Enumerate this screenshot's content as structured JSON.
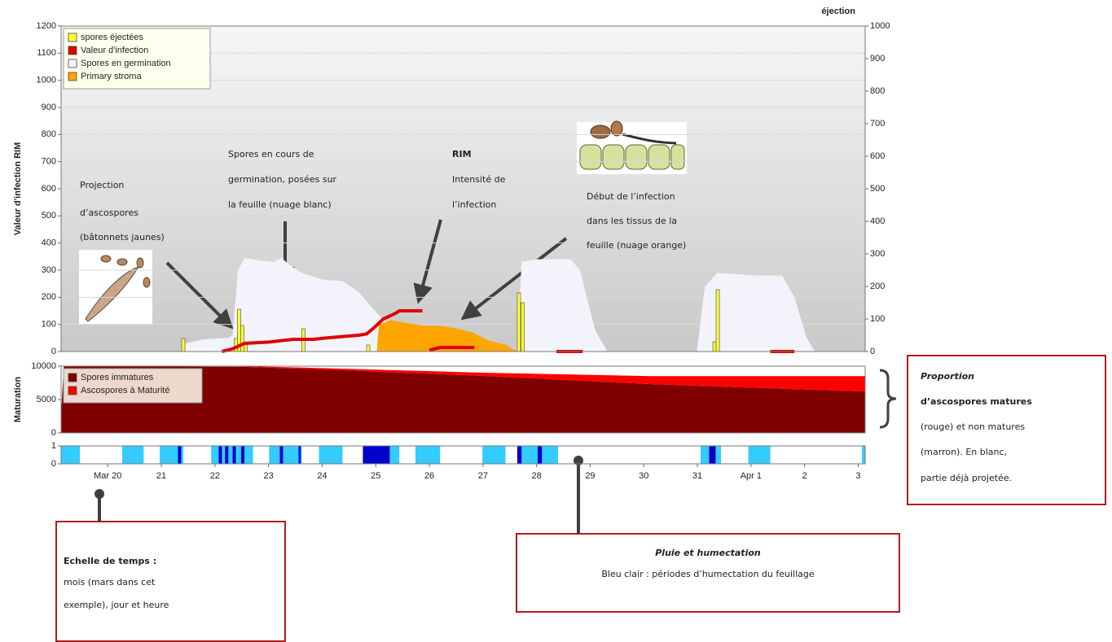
{
  "chart_data": [
    {
      "type": "combo",
      "y_label": "Valeur d'infection RIM",
      "y2_label": "éjection",
      "xlim": [
        19.13,
        34.13
      ],
      "ylim": [
        0,
        1200
      ],
      "yticks": [
        0,
        100,
        200,
        300,
        400,
        500,
        600,
        700,
        800,
        900,
        1000,
        1100,
        1200
      ],
      "y2lim": [
        0,
        1000
      ],
      "y2ticks": [
        0,
        100,
        200,
        300,
        400,
        500,
        600,
        700,
        800,
        900,
        1000
      ],
      "grid": true,
      "legend": "upper left",
      "series": [
        {
          "name": "spores éjectées",
          "type": "bar",
          "axis": "y2",
          "color": "#ffff33",
          "x": [
            21.41,
            22.39,
            22.45,
            22.51,
            22.57,
            23.65,
            24.86,
            27.67,
            27.74,
            31.32,
            31.38
          ],
          "values": [
            40,
            40,
            130,
            80,
            25,
            70,
            20,
            180,
            150,
            30,
            190
          ]
        },
        {
          "name": "Valeur d'infection",
          "type": "line",
          "color": "#e00000",
          "x": [
            22.13,
            22.33,
            22.55,
            23.01,
            23.24,
            23.47,
            23.84,
            24.07,
            24.38,
            24.68,
            24.83,
            24.98,
            25.14,
            25.36,
            25.44,
            25.87,
            25.94,
            26.0,
            26.2,
            26.84,
            27.5,
            28.37,
            28.86,
            30.5,
            32.36,
            32.81
          ],
          "values": [
            0,
            10,
            30,
            35,
            40,
            45,
            45,
            50,
            55,
            60,
            65,
            90,
            120,
            140,
            150,
            150,
            null,
            5,
            15,
            15,
            null,
            0,
            0,
            null,
            0,
            0
          ]
        },
        {
          "name": "Spores en germination",
          "type": "area",
          "color": "#f3f4fb",
          "x": [
            21.37,
            21.46,
            21.79,
            22.25,
            22.33,
            22.43,
            22.55,
            22.86,
            23.09,
            23.24,
            23.39,
            23.62,
            24.0,
            24.38,
            24.68,
            24.98,
            25.29,
            25.59,
            25.74,
            26.5,
            27.64,
            27.72,
            28.02,
            28.63,
            28.81,
            29.09,
            29.32,
            30.0,
            30.99,
            31.14,
            31.37,
            32.13,
            32.58,
            32.81,
            33.04,
            33.19
          ],
          "values": [
            0,
            30,
            45,
            50,
            60,
            300,
            345,
            335,
            330,
            345,
            320,
            290,
            265,
            260,
            220,
            150,
            90,
            60,
            0,
            null,
            0,
            330,
            340,
            340,
            300,
            80,
            0,
            null,
            0,
            240,
            290,
            280,
            280,
            200,
            50,
            0
          ]
        },
        {
          "name": "Primary stroma",
          "type": "area",
          "color": "#ffa500",
          "x": [
            25.02,
            25.06,
            25.29,
            25.59,
            25.9,
            26.2,
            26.5,
            26.81,
            27.11,
            27.42,
            27.64
          ],
          "values": [
            0,
            100,
            115,
            105,
            95,
            95,
            85,
            70,
            40,
            25,
            0
          ]
        }
      ],
      "annotations": [
        {
          "lines": [
            "Projection",
            "d’ascospores",
            "(bâtonnets jaunes)"
          ]
        },
        {
          "lines": [
            "Spores en cours de",
            "germination, posées sur",
            "la feuille (nuage blanc)"
          ]
        },
        {
          "lines": [
            "RIM",
            "Intensité de",
            "l’infection"
          ]
        },
        {
          "lines": [
            "Début de l’infection",
            "dans les tissus de la",
            "feuille (nuage orange)"
          ]
        },
        {
          "lines": [
            "Echelle de temps :",
            "mois (mars dans cet",
            "exemple),  jour et heure"
          ]
        },
        {
          "lines": [
            "Pluie et humectation",
            "Bleu clair : périodes d’humectation du feuillage"
          ]
        },
        {
          "lines": [
            "Proportion",
            "d’ascospores matures",
            "(rouge) et non matures",
            "(marron).  En blanc,",
            "partie déjà projetée."
          ]
        }
      ]
    },
    {
      "type": "area",
      "stacked": true,
      "y_label": "Maturation",
      "xlim": [
        19.13,
        34.13
      ],
      "ylim": [
        0,
        10000
      ],
      "yticks": [
        0,
        5000,
        10000
      ],
      "legend": "upper left",
      "x": [
        19.13,
        19.18,
        22.55,
        24.07,
        27.11,
        30.15,
        34.13
      ],
      "series": [
        {
          "name": "Spores immatures",
          "color": "#800000",
          "values": [
            2800,
            10000,
            9900,
            9500,
            8500,
            7300,
            6200
          ]
        },
        {
          "name": "Ascospores à Maturité",
          "color": "#ff0000",
          "values": [
            0,
            0,
            100,
            200,
            500,
            1200,
            2300
          ]
        }
      ]
    },
    {
      "type": "timeline",
      "xlim": [
        19.13,
        34.13
      ],
      "xticks": [
        {
          "value": 20,
          "label": "Mar 20"
        },
        21,
        22,
        23,
        24,
        25,
        26,
        27,
        28,
        29,
        30,
        31,
        {
          "value": 32,
          "label": "Apr 1"
        },
        {
          "value": 33,
          "label": "2"
        },
        {
          "value": 34,
          "label": "3"
        }
      ],
      "ylim": [
        0,
        1
      ],
      "yticks": [
        0,
        1
      ],
      "series": [
        {
          "color": "#33ccff",
          "intervals": [
            [
              19.13,
              19.48
            ],
            [
              20.27,
              20.67
            ],
            [
              20.97,
              21.41
            ],
            [
              21.93,
              22.71
            ],
            [
              23.01,
              23.62
            ],
            [
              23.94,
              24.38
            ],
            [
              24.76,
              25.44
            ],
            [
              25.74,
              26.2
            ],
            [
              26.99,
              27.42
            ],
            [
              27.64,
              28.4
            ],
            [
              31.06,
              31.44
            ],
            [
              31.95,
              32.36
            ],
            [
              34.07,
              34.13
            ]
          ]
        },
        {
          "color": "#0000cc",
          "intervals": [
            [
              21.31,
              21.37
            ],
            [
              22.07,
              22.13
            ],
            [
              22.19,
              22.25
            ],
            [
              22.33,
              22.39
            ],
            [
              22.49,
              22.55
            ],
            [
              23.21,
              23.27
            ],
            [
              23.56,
              23.6
            ],
            [
              24.76,
              25.26
            ],
            [
              27.64,
              27.72
            ],
            [
              28.02,
              28.1
            ],
            [
              31.22,
              31.34
            ]
          ]
        }
      ]
    }
  ]
}
